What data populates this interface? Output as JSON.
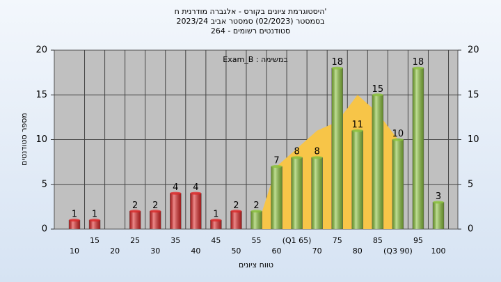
{
  "chart_data": {
    "type": "bar",
    "title": "היסטוגרמת ציונים בקורס - אלגברה מודרנית ח'",
    "subtitle": "בסמסטר  (02/2023)  סמסטר אביב 2023/24",
    "subtitle2": "סטודנטים רשומים - 264",
    "annotation": "Exam_B : במשימה",
    "x_label": "טווח ציונים",
    "y_label": "מספר סטודנטים",
    "categories": [
      "10",
      "15",
      "20",
      "25",
      "30",
      "35",
      "40",
      "45",
      "50",
      "55",
      "60",
      "(Q1 65)",
      "70",
      "75",
      "80",
      "85",
      "(Q3 90)",
      "95",
      "100"
    ],
    "values": [
      1,
      1,
      0,
      2,
      2,
      4,
      4,
      1,
      2,
      2,
      7,
      8,
      8,
      18,
      11,
      15,
      10,
      18,
      3
    ],
    "colors": [
      "#e02828",
      "#e02828",
      "#e02828",
      "#e02828",
      "#e02828",
      "#e02828",
      "#e02828",
      "#e02828",
      "#e02828",
      "#8cc43c",
      "#8cc43c",
      "#8cc43c",
      "#8cc43c",
      "#8cc43c",
      "#8cc43c",
      "#8cc43c",
      "#8cc43c",
      "#8cc43c",
      "#8cc43c"
    ],
    "curve": {
      "color": "#f7c548",
      "values": [
        null,
        null,
        null,
        null,
        null,
        null,
        null,
        null,
        null,
        0,
        7,
        9,
        11,
        12,
        15,
        13,
        10,
        null,
        null
      ]
    },
    "ylim": [
      0,
      20
    ],
    "yticks": [
      0,
      5,
      10,
      15,
      20
    ],
    "y2lim": [
      0,
      20
    ],
    "y2ticks": [
      0,
      5,
      10,
      15,
      20
    ],
    "grid": true
  }
}
